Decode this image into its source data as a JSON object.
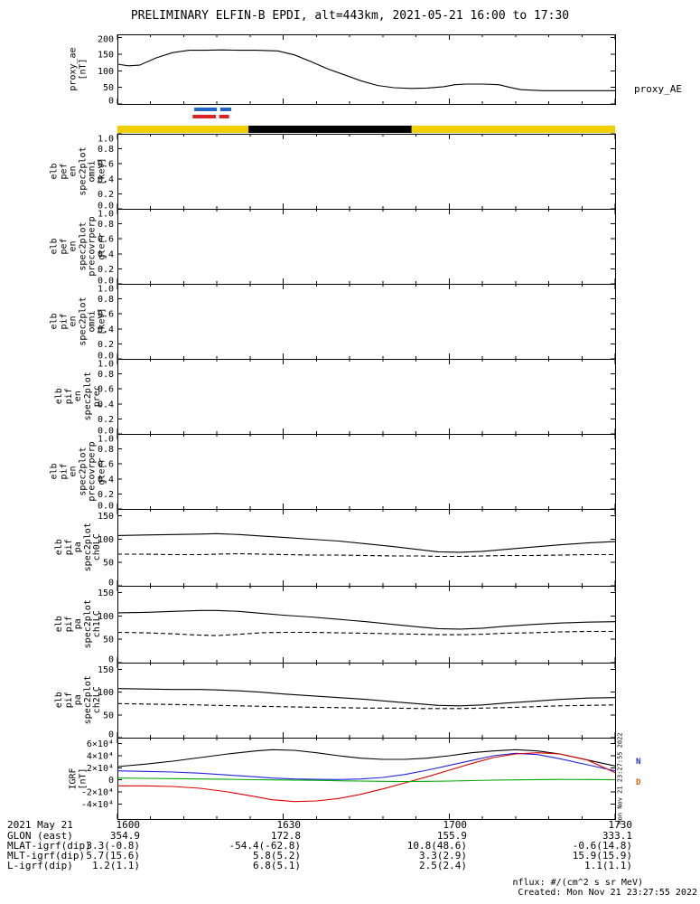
{
  "title": "PRELIMINARY ELFIN-B EPDI, alt=443km, 2021-05-21 16:00 to 17:30",
  "time_axis": {
    "xlim": [
      0,
      90
    ],
    "major": [
      0,
      30,
      60,
      90
    ],
    "minor": [
      6,
      12,
      18,
      24,
      36,
      42,
      48,
      54,
      66,
      72,
      78,
      84
    ],
    "labels": [
      "1600",
      "1630",
      "1700",
      "1730"
    ],
    "date": "2021 May 21"
  },
  "chart_data": [
    {
      "id": "proxy_ae",
      "type": "line",
      "label_lines": [
        "proxy_ae",
        "[nT]"
      ],
      "right_label": "proxy_AE",
      "ylim": [
        0,
        210
      ],
      "yticks": [
        {
          "v": 0,
          "t": "0"
        },
        {
          "v": 50,
          "t": "50"
        },
        {
          "v": 100,
          "t": "100"
        },
        {
          "v": 150,
          "t": "150"
        },
        {
          "v": 200,
          "t": "200"
        }
      ],
      "series": [
        {
          "name": "proxy-AE",
          "color": "#000000",
          "style": "solid",
          "x": [
            0,
            2,
            4,
            7,
            10,
            13,
            16,
            19,
            22,
            25,
            29,
            32,
            35,
            38,
            41,
            44,
            47,
            50,
            53,
            56,
            59,
            61,
            63,
            66,
            69,
            71,
            73,
            77,
            82,
            90
          ],
          "y": [
            120,
            115,
            117,
            139,
            155,
            162,
            162,
            163,
            162,
            162,
            160,
            148,
            128,
            106,
            88,
            70,
            56,
            49,
            47,
            48,
            52,
            58,
            60,
            60,
            58,
            50,
            43,
            40,
            40,
            40
          ]
        }
      ]
    },
    {
      "id": "elb_pef_en_omni",
      "type": "line",
      "label_lines": [
        "elb",
        "pef",
        "en",
        "spec2plot",
        "omni",
        "[keV]"
      ],
      "ylim": [
        0,
        1
      ],
      "yticks": [
        {
          "v": 0,
          "t": "0.0"
        },
        {
          "v": 0.2,
          "t": "0.2"
        },
        {
          "v": 0.4,
          "t": "0.4"
        },
        {
          "v": 0.6,
          "t": "0.6"
        },
        {
          "v": 0.8,
          "t": "0.8"
        },
        {
          "v": 1,
          "t": "1.0"
        }
      ],
      "series": []
    },
    {
      "id": "elb_pef_en_precovrperp_gterr",
      "type": "line",
      "label_lines": [
        "elb",
        "pef",
        "en",
        "spec2plot",
        "precovrperp",
        "gterr"
      ],
      "ylim": [
        0,
        1
      ],
      "yticks": [
        {
          "v": 0,
          "t": "0.0"
        },
        {
          "v": 0.2,
          "t": "0.2"
        },
        {
          "v": 0.4,
          "t": "0.4"
        },
        {
          "v": 0.6,
          "t": "0.6"
        },
        {
          "v": 0.8,
          "t": "0.8"
        },
        {
          "v": 1,
          "t": "1.0"
        }
      ],
      "series": []
    },
    {
      "id": "elb_pif_en_omni",
      "type": "line",
      "label_lines": [
        "elb",
        "pif",
        "en",
        "spec2plot",
        "omni",
        "[keV]"
      ],
      "ylim": [
        0,
        1
      ],
      "yticks": [
        {
          "v": 0,
          "t": "0.0"
        },
        {
          "v": 0.2,
          "t": "0.2"
        },
        {
          "v": 0.4,
          "t": "0.4"
        },
        {
          "v": 0.6,
          "t": "0.6"
        },
        {
          "v": 0.8,
          "t": "0.8"
        },
        {
          "v": 1,
          "t": "1.0"
        }
      ],
      "series": []
    },
    {
      "id": "elb_pif_en_prec",
      "type": "line",
      "label_lines": [
        "elb",
        "pif",
        "en",
        "spec2plot",
        "prec"
      ],
      "ylim": [
        0,
        1
      ],
      "yticks": [
        {
          "v": 0,
          "t": "0.0"
        },
        {
          "v": 0.2,
          "t": "0.2"
        },
        {
          "v": 0.4,
          "t": "0.4"
        },
        {
          "v": 0.6,
          "t": "0.6"
        },
        {
          "v": 0.8,
          "t": "0.8"
        },
        {
          "v": 1,
          "t": "1.0"
        }
      ],
      "series": []
    },
    {
      "id": "elb_pif_en_precovrperp_gterr",
      "type": "line",
      "label_lines": [
        "elb",
        "pif",
        "en",
        "spec2plot",
        "precovrperp",
        "gterr"
      ],
      "ylim": [
        0,
        1
      ],
      "yticks": [
        {
          "v": 0,
          "t": "0.0"
        },
        {
          "v": 0.2,
          "t": "0.2"
        },
        {
          "v": 0.4,
          "t": "0.4"
        },
        {
          "v": 0.6,
          "t": "0.6"
        },
        {
          "v": 0.8,
          "t": "0.8"
        },
        {
          "v": 1,
          "t": "1.0"
        }
      ],
      "series": []
    },
    {
      "id": "elb_pif_pa_ch0LC",
      "type": "line",
      "label_lines": [
        "elb",
        "pif",
        "pa",
        "spec2plot",
        "ch0LC"
      ],
      "ylim": [
        0,
        165
      ],
      "yticks": [
        {
          "v": 0,
          "t": "0"
        },
        {
          "v": 50,
          "t": "50"
        },
        {
          "v": 100,
          "t": "100"
        },
        {
          "v": 150,
          "t": "150"
        }
      ],
      "series": [
        {
          "name": "ch0-solid-trace",
          "color": "#000000",
          "style": "solid",
          "x": [
            0,
            5,
            10,
            15,
            18,
            22,
            26,
            30,
            35,
            40,
            45,
            50,
            55,
            58,
            62,
            66,
            70,
            75,
            80,
            85,
            90
          ],
          "y": [
            108,
            109,
            110,
            111,
            112,
            110,
            107,
            104,
            100,
            96,
            90,
            84,
            77,
            73,
            72,
            74,
            78,
            83,
            88,
            92,
            95
          ]
        },
        {
          "name": "ch0-dashed-loss-cone",
          "color": "#000000",
          "style": "dashed",
          "x": [
            0,
            5,
            10,
            15,
            18,
            22,
            26,
            30,
            35,
            40,
            45,
            50,
            55,
            58,
            62,
            66,
            70,
            75,
            80,
            85,
            90
          ],
          "y": [
            68,
            68,
            67,
            67,
            68,
            69,
            68,
            67,
            66,
            66,
            65,
            64,
            64,
            63,
            63,
            64,
            65,
            65,
            66,
            67,
            67
          ]
        }
      ]
    },
    {
      "id": "elb_pif_pa_ch1LC",
      "type": "line",
      "label_lines": [
        "elb",
        "pif",
        "pa",
        "spec2plot",
        "ch1LC"
      ],
      "ylim": [
        0,
        165
      ],
      "yticks": [
        {
          "v": 0,
          "t": "0"
        },
        {
          "v": 50,
          "t": "50"
        },
        {
          "v": 100,
          "t": "100"
        },
        {
          "v": 150,
          "t": "150"
        }
      ],
      "series": [
        {
          "name": "ch1-solid-trace",
          "color": "#000000",
          "style": "solid",
          "x": [
            0,
            5,
            10,
            15,
            18,
            22,
            26,
            30,
            35,
            40,
            45,
            50,
            55,
            58,
            62,
            66,
            70,
            75,
            80,
            85,
            90
          ],
          "y": [
            107,
            108,
            110,
            112,
            112,
            110,
            106,
            102,
            98,
            93,
            88,
            82,
            76,
            73,
            72,
            74,
            78,
            82,
            85,
            87,
            88
          ]
        },
        {
          "name": "ch1-dashed-loss-cone",
          "color": "#000000",
          "style": "dashed",
          "x": [
            0,
            5,
            10,
            15,
            18,
            22,
            26,
            30,
            35,
            40,
            45,
            50,
            55,
            58,
            62,
            66,
            70,
            75,
            80,
            85,
            90
          ],
          "y": [
            65,
            64,
            62,
            59,
            58,
            61,
            64,
            65,
            65,
            64,
            63,
            62,
            61,
            60,
            60,
            61,
            63,
            64,
            66,
            67,
            67
          ]
        }
      ]
    },
    {
      "id": "elb_pif_pa_ch2LC",
      "type": "line",
      "label_lines": [
        "elb",
        "pif",
        "pa",
        "spec2plot",
        "ch2LC"
      ],
      "ylim": [
        0,
        165
      ],
      "yticks": [
        {
          "v": 0,
          "t": "0"
        },
        {
          "v": 50,
          "t": "50"
        },
        {
          "v": 100,
          "t": "100"
        },
        {
          "v": 150,
          "t": "150"
        }
      ],
      "series": [
        {
          "name": "ch2-solid-trace",
          "color": "#000000",
          "style": "solid",
          "x": [
            0,
            5,
            10,
            15,
            18,
            22,
            26,
            30,
            35,
            40,
            45,
            50,
            55,
            58,
            62,
            66,
            70,
            75,
            80,
            85,
            90
          ],
          "y": [
            108,
            107,
            106,
            106,
            105,
            103,
            100,
            96,
            92,
            88,
            84,
            79,
            74,
            71,
            70,
            72,
            76,
            80,
            84,
            87,
            88
          ]
        },
        {
          "name": "ch2-dashed-loss-cone",
          "color": "#000000",
          "style": "dashed",
          "x": [
            0,
            5,
            10,
            15,
            18,
            22,
            26,
            30,
            35,
            40,
            45,
            50,
            55,
            58,
            62,
            66,
            70,
            75,
            80,
            85,
            90
          ],
          "y": [
            75,
            74,
            73,
            72,
            71,
            70,
            69,
            68,
            67,
            66,
            65,
            65,
            64,
            64,
            64,
            65,
            66,
            68,
            70,
            71,
            72
          ]
        }
      ]
    },
    {
      "id": "igrf",
      "type": "line",
      "label_lines": [
        "IGRF",
        "[nT]"
      ],
      "ylim": [
        -65000,
        70000
      ],
      "yticks": [
        {
          "v": -40000,
          "t": "-4×10⁴"
        },
        {
          "v": -20000,
          "t": "-2×10⁴"
        },
        {
          "v": 0,
          "t": "0"
        },
        {
          "v": 20000,
          "t": "2×10⁴"
        },
        {
          "v": 40000,
          "t": "4×10⁴"
        },
        {
          "v": 60000,
          "t": "6×10⁴"
        }
      ],
      "series": [
        {
          "name": "igrf-total-black",
          "color": "#000000",
          "style": "solid",
          "x": [
            0,
            5,
            10,
            15,
            20,
            25,
            28,
            32,
            36,
            40,
            44,
            48,
            52,
            56,
            60,
            64,
            68,
            72,
            76,
            80,
            85,
            90
          ],
          "y": [
            22000,
            26000,
            31000,
            37000,
            43000,
            48000,
            50000,
            49000,
            45000,
            40000,
            36000,
            34000,
            34000,
            36000,
            40000,
            45000,
            48000,
            50000,
            48000,
            43000,
            33000,
            23000
          ]
        },
        {
          "name": "igrf-comp-blue",
          "color": "#2222dd",
          "style": "solid",
          "x": [
            0,
            5,
            10,
            15,
            20,
            25,
            28,
            32,
            36,
            40,
            44,
            48,
            52,
            56,
            60,
            64,
            68,
            72,
            76,
            80,
            85,
            90
          ],
          "y": [
            15000,
            14000,
            13000,
            11000,
            8000,
            5000,
            3000,
            1500,
            800,
            600,
            1500,
            4000,
            9000,
            16000,
            24000,
            32000,
            40000,
            44000,
            42000,
            35000,
            25000,
            15000
          ]
        },
        {
          "name": "igrf-comp-red",
          "color": "#dd0000",
          "style": "solid",
          "x": [
            0,
            5,
            10,
            15,
            20,
            25,
            28,
            32,
            36,
            40,
            44,
            48,
            52,
            56,
            60,
            64,
            68,
            72,
            76,
            80,
            85,
            90
          ],
          "y": [
            -10000,
            -10000,
            -11000,
            -14000,
            -20000,
            -28000,
            -33000,
            -36000,
            -35000,
            -31000,
            -24000,
            -15000,
            -5000,
            5000,
            16000,
            27000,
            37000,
            43000,
            45000,
            43000,
            33000,
            12000
          ]
        },
        {
          "name": "igrf-comp-green",
          "color": "#00aa00",
          "style": "solid",
          "x": [
            0,
            5,
            10,
            15,
            20,
            25,
            28,
            32,
            36,
            40,
            44,
            48,
            52,
            56,
            60,
            64,
            68,
            72,
            76,
            80,
            85,
            90
          ],
          "y": [
            3000,
            2500,
            2000,
            1500,
            800,
            300,
            0,
            -300,
            -800,
            -1500,
            -2000,
            -2500,
            -2800,
            -2500,
            -2000,
            -1200,
            -500,
            0,
            400,
            700,
            500,
            300
          ]
        }
      ]
    }
  ],
  "colorbar": {
    "small_bars": [
      {
        "name": "epd-zone-bar-blue",
        "color": "#2266cc",
        "row": 0,
        "segments": [
          [
            13.9,
            18.0
          ],
          [
            18.6,
            20.6
          ]
        ]
      },
      {
        "name": "epd-zone-bar-red",
        "color": "#dd2222",
        "row": 1,
        "segments": [
          [
            13.6,
            17.8
          ],
          [
            18.4,
            20.2
          ]
        ]
      }
    ],
    "main_bar": {
      "segments": [
        {
          "color": "#f0d000",
          "from": 0,
          "to": 23.7
        },
        {
          "color": "#000000",
          "from": 23.7,
          "to": 53.2
        },
        {
          "color": "#f0d000",
          "from": 53.2,
          "to": 90
        }
      ]
    }
  },
  "igrf_legend": [
    {
      "text": "N",
      "color": "#2233cc"
    },
    {
      "text": "D",
      "color": "#cc6600"
    }
  ],
  "annotations": {
    "rows": [
      {
        "label": "2021 May 21",
        "values": [
          "1600",
          "1630",
          "1700",
          "1730"
        ]
      },
      {
        "label": "GLON (east)",
        "values": [
          "354.9",
          "172.8",
          "155.9",
          "333.1"
        ]
      },
      {
        "label": "MLAT-igrf(dip)",
        "values": [
          "3.3(-0.8)",
          "-54.4(-62.8)",
          "10.8(48.6)",
          "-0.6(14.8)"
        ]
      },
      {
        "label": "MLT-igrf(dip)",
        "values": [
          "5.7(15.6)",
          "5.8(5.2)",
          "3.3(2.9)",
          "15.9(15.9)"
        ]
      },
      {
        "label": "L-igrf(dip)",
        "values": [
          "1.2(1.1)",
          "6.8(5.1)",
          "2.5(2.4)",
          "1.1(1.1)"
        ]
      }
    ]
  },
  "footer": {
    "units_note": "nflux: #/(cm^2 s sr MeV)",
    "created_note": "Created: Mon Nov 21 23:27:55 2022",
    "side_timestamp": "Mon Nov 21 23:27:55 2022"
  }
}
